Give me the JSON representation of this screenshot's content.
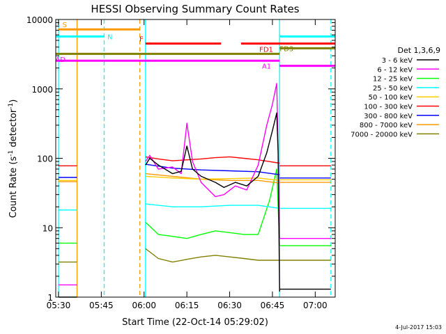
{
  "chart_data": {
    "type": "line",
    "title": "HESSI Observing Summary Count Rates",
    "xlabel": "Start Time (22-Oct-14 05:29:02)",
    "ylabel_main": "Count Rate (s",
    "ylabel_sup1": "-1",
    "ylabel_mid": " detector",
    "ylabel_sup2": "-1",
    "ylabel_end": ")",
    "footer": "4-Jul-2017 15:03",
    "x_scale": "time",
    "xlim": [
      "05:29:02",
      "07:07:00"
    ],
    "x_ticks": [
      "05:30",
      "05:45",
      "06:00",
      "06:15",
      "06:30",
      "06:45",
      "07:00"
    ],
    "y_scale": "log",
    "ylim": [
      1,
      10000
    ],
    "y_ticks": [
      {
        "value": 1,
        "label": "1"
      },
      {
        "value": 10,
        "label": "10"
      },
      {
        "value": 100,
        "label": "100"
      },
      {
        "value": 1000,
        "label": "1000"
      },
      {
        "value": 10000,
        "label": "10000"
      }
    ],
    "legend_title": "Det 1,3,6,9",
    "legend_position": "right",
    "series": [
      {
        "name": "3 - 6 keV",
        "color": "#000000"
      },
      {
        "name": "6 - 12 keV",
        "color": "#ff00ff"
      },
      {
        "name": "12 - 25 keV",
        "color": "#00ff00"
      },
      {
        "name": "25 - 50 keV",
        "color": "#00ffff"
      },
      {
        "name": "50 - 100 keV",
        "color": "#ffcc00"
      },
      {
        "name": "100 - 300 keV",
        "color": "#ff0000"
      },
      {
        "name": "300 - 800 keV",
        "color": "#0000ff"
      },
      {
        "name": "800 - 7000 keV",
        "color": "#ff9900"
      },
      {
        "name": "7000 - 20000 keV",
        "color": "#808000"
      }
    ],
    "data_segments": [
      {
        "start": "05:30:00",
        "end": "05:36:30",
        "levels": {
          "3 - 6 keV": 1,
          "6 - 12 keV": 1.5,
          "12 - 25 keV": 6,
          "25 - 50 keV": 18,
          "50 - 100 keV": 48,
          "100 - 300 keV": 78,
          "300 - 800 keV": 53,
          "800 - 7000 keV": 46,
          "7000 - 20000 keV": 3.2
        }
      },
      {
        "start": "06:00:30",
        "end": "06:47:30",
        "points": {
          "3 - 6 keV": [
            [
              "06:00:30",
              80
            ],
            [
              "06:02:00",
              100
            ],
            [
              "06:05:00",
              80
            ],
            [
              "06:10:00",
              60
            ],
            [
              "06:13:00",
              65
            ],
            [
              "06:15:00",
              150
            ],
            [
              "06:17:00",
              70
            ],
            [
              "06:20:00",
              55
            ],
            [
              "06:25:00",
              45
            ],
            [
              "06:28:00",
              38
            ],
            [
              "06:32:00",
              45
            ],
            [
              "06:36:00",
              40
            ],
            [
              "06:40:00",
              55
            ],
            [
              "06:43:00",
              120
            ],
            [
              "06:45:00",
              250
            ],
            [
              "06:46:30",
              450
            ],
            [
              "06:47:00",
              120
            ],
            [
              "06:47:30",
              1.2
            ]
          ],
          "6 - 12 keV": [
            [
              "06:00:30",
              90
            ],
            [
              "06:02:00",
              110
            ],
            [
              "06:05:00",
              70
            ],
            [
              "06:10:00",
              75
            ],
            [
              "06:13:00",
              60
            ],
            [
              "06:15:00",
              320
            ],
            [
              "06:17:00",
              90
            ],
            [
              "06:20:00",
              45
            ],
            [
              "06:25:00",
              28
            ],
            [
              "06:28:00",
              30
            ],
            [
              "06:32:00",
              40
            ],
            [
              "06:36:00",
              35
            ],
            [
              "06:40:00",
              80
            ],
            [
              "06:43:00",
              300
            ],
            [
              "06:45:00",
              600
            ],
            [
              "06:46:30",
              1200
            ],
            [
              "06:47:00",
              150
            ],
            [
              "06:47:30",
              7
            ]
          ],
          "12 - 25 keV": [
            [
              "06:00:30",
              12
            ],
            [
              "06:05:00",
              8
            ],
            [
              "06:10:00",
              7.5
            ],
            [
              "06:15:00",
              7
            ],
            [
              "06:20:00",
              8
            ],
            [
              "06:25:00",
              9
            ],
            [
              "06:30:00",
              8.5
            ],
            [
              "06:35:00",
              8
            ],
            [
              "06:40:00",
              8
            ],
            [
              "06:44:00",
              25
            ],
            [
              "06:46:30",
              70
            ],
            [
              "06:47:30",
              5.5
            ]
          ],
          "25 - 50 keV": [
            [
              "06:00:30",
              22
            ],
            [
              "06:10:00",
              20
            ],
            [
              "06:20:00",
              20
            ],
            [
              "06:30:00",
              21
            ],
            [
              "06:40:00",
              21
            ],
            [
              "06:47:30",
              19
            ]
          ],
          "50 - 100 keV": [
            [
              "06:00:30",
              55
            ],
            [
              "06:10:00",
              52
            ],
            [
              "06:20:00",
              50
            ],
            [
              "06:30:00",
              51
            ],
            [
              "06:40:00",
              52
            ],
            [
              "06:47:30",
              48
            ]
          ],
          "100 - 300 keV": [
            [
              "06:00:30",
              105
            ],
            [
              "06:05:00",
              98
            ],
            [
              "06:10:00",
              92
            ],
            [
              "06:15:00",
              95
            ],
            [
              "06:20:00",
              98
            ],
            [
              "06:25:00",
              102
            ],
            [
              "06:30:00",
              105
            ],
            [
              "06:35:00",
              100
            ],
            [
              "06:40:00",
              95
            ],
            [
              "06:47:30",
              85
            ]
          ],
          "300 - 800 keV": [
            [
              "06:00:30",
              82
            ],
            [
              "06:10:00",
              72
            ],
            [
              "06:20:00",
              68
            ],
            [
              "06:30:00",
              66
            ],
            [
              "06:40:00",
              64
            ],
            [
              "06:47:30",
              58
            ]
          ],
          "800 - 7000 keV": [
            [
              "06:00:30",
              60
            ],
            [
              "06:10:00",
              55
            ],
            [
              "06:20:00",
              50
            ],
            [
              "06:30:00",
              48
            ],
            [
              "06:40:00",
              48
            ],
            [
              "06:47:30",
              44
            ]
          ],
          "7000 - 20000 keV": [
            [
              "06:00:30",
              5
            ],
            [
              "06:05:00",
              3.6
            ],
            [
              "06:10:00",
              3.2
            ],
            [
              "06:15:00",
              3.5
            ],
            [
              "06:20:00",
              3.8
            ],
            [
              "06:25:00",
              4.0
            ],
            [
              "06:30:00",
              3.8
            ],
            [
              "06:35:00",
              3.6
            ],
            [
              "06:40:00",
              3.4
            ],
            [
              "06:47:30",
              3.4
            ]
          ]
        }
      },
      {
        "start": "06:47:30",
        "end": "07:05:30",
        "levels": {
          "3 - 6 keV": 1.3,
          "6 - 12 keV": 7,
          "12 - 25 keV": 5.5,
          "25 - 50 keV": 19,
          "50 - 100 keV": 49,
          "100 - 300 keV": 78,
          "300 - 800 keV": 52,
          "800 - 7000 keV": 45,
          "7000 - 20000 keV": 3.4
        }
      }
    ],
    "vertical_markers": [
      {
        "time": "05:30:00",
        "color": "#00ffff",
        "style": "solid"
      },
      {
        "time": "05:36:30",
        "color": "#ff9900",
        "style": "solid"
      },
      {
        "time": "05:46:00",
        "color": "#00ffff",
        "style": "dashed"
      },
      {
        "time": "05:58:30",
        "color": "#ff9900",
        "style": "dashed"
      },
      {
        "time": "06:00:30",
        "color": "#00ffff",
        "style": "solid"
      },
      {
        "time": "06:47:30",
        "color": "#00ffff",
        "style": "solid"
      },
      {
        "time": "07:05:30",
        "color": "#00ffff",
        "style": "dashed"
      }
    ],
    "flag_bars": [
      {
        "label": "S",
        "color": "#ff9900",
        "start": "05:30:00",
        "end": "05:58:30",
        "level": 7200
      },
      {
        "label": "N",
        "color": "#00ffff",
        "start": "05:29:02",
        "end": "05:46:00",
        "level": 5700
      },
      {
        "label": "",
        "color": "#00ffff",
        "start": "06:47:30",
        "end": "07:07:00",
        "level": 5700
      },
      {
        "label": "F",
        "color": "#ff0000",
        "start": "06:00:30",
        "end": "06:27:00",
        "level": 4500
      },
      {
        "label": "FD1",
        "color": "#ff0000",
        "start": "06:34:00",
        "end": "07:07:00",
        "level": 4500
      },
      {
        "label": "",
        "color": "#808000",
        "start": "05:29:02",
        "end": "06:47:30",
        "level": 3200
      },
      {
        "label": "FD3",
        "color": "#808000",
        "start": "06:47:30",
        "end": "07:07:00",
        "level": 3850
      },
      {
        "label": "AD",
        "color": "#ff00ff",
        "start": "05:29:02",
        "end": "06:47:30",
        "level": 2550
      },
      {
        "label": "A1",
        "color": "#ff00ff",
        "start": "06:47:30",
        "end": "07:07:00",
        "level": 2150
      }
    ]
  }
}
